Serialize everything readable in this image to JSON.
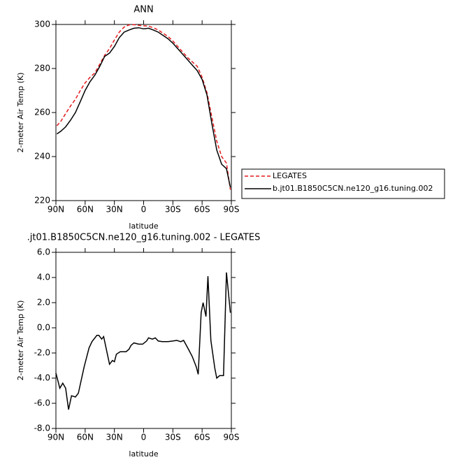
{
  "chart_data": [
    {
      "type": "line",
      "title": "ANN",
      "xlabel": "latitude",
      "ylabel": "2-meter Air Temp (K)",
      "x": [
        89,
        85,
        80,
        75,
        70,
        65,
        60,
        55,
        50,
        45,
        40,
        35,
        30,
        25,
        20,
        15,
        10,
        5,
        0,
        -5,
        -10,
        -15,
        -20,
        -25,
        -30,
        -35,
        -40,
        -45,
        -50,
        -55,
        -60,
        -65,
        -70,
        -75,
        -80,
        -85,
        -89
      ],
      "series": [
        {
          "name": "LEGATES",
          "color": "#e41a1c",
          "style": "dashed",
          "values": [
            254,
            256,
            259.5,
            263,
            266,
            270,
            273.5,
            276,
            278,
            282,
            286,
            289,
            293,
            296.5,
            298.8,
            299.8,
            299.9,
            299.6,
            299.4,
            299.2,
            298.5,
            297.5,
            296,
            294.5,
            292.5,
            290,
            287.5,
            285,
            283,
            281,
            276,
            269,
            258,
            247,
            240,
            237,
            225
          ]
        },
        {
          "name": "b.jt01.B1850C5CN.ne120_g16.tuning.002",
          "color": "#000000",
          "style": "solid",
          "values": [
            250.3,
            251.5,
            253.5,
            256.5,
            260,
            265,
            270,
            274,
            277,
            281,
            285.5,
            287,
            290,
            294,
            296.5,
            297.5,
            298.3,
            298.5,
            298,
            298.3,
            297.5,
            296.5,
            295,
            293.5,
            291.5,
            289,
            286.5,
            284,
            281.5,
            279,
            275,
            268,
            255,
            243,
            236.5,
            234.5,
            226
          ]
        }
      ],
      "xlim": [
        90,
        -90
      ],
      "ylim": [
        220,
        300
      ],
      "xticks": [
        {
          "value": 90,
          "label": "90N"
        },
        {
          "value": 60,
          "label": "60N"
        },
        {
          "value": 30,
          "label": "30N"
        },
        0,
        {
          "value": -30,
          "label": "30S"
        },
        {
          "value": -60,
          "label": "60S"
        },
        {
          "value": -90,
          "label": "90S"
        }
      ],
      "yticks": [
        220,
        240,
        260,
        280,
        300
      ],
      "legend": "right"
    },
    {
      "type": "line",
      "title": ".jt01.B1850C5CN.ne120_g16.tuning.002 - LEGATES",
      "xlabel": "latitude",
      "ylabel": "2-meter Air Temp (K)",
      "x": [
        90,
        86,
        83,
        80,
        77,
        74,
        70,
        67,
        61,
        56,
        53,
        48,
        46,
        43,
        41,
        35,
        32,
        30,
        28,
        24,
        18,
        15,
        13,
        10,
        5,
        1,
        -3,
        -5,
        -9,
        -12,
        -15,
        -19,
        -25,
        -30,
        -34,
        -38,
        -41,
        -46,
        -50,
        -54,
        -56,
        -59,
        -61,
        -64,
        -66,
        -69,
        -73,
        -75,
        -78,
        -82,
        -85,
        -89
      ],
      "series": [
        {
          "color": "#000000",
          "values": [
            -3.6,
            -4.8,
            -4.4,
            -4.8,
            -6.5,
            -5.4,
            -5.5,
            -5.2,
            -3.1,
            -1.6,
            -1.1,
            -0.6,
            -0.6,
            -0.9,
            -0.7,
            -2.9,
            -2.6,
            -2.7,
            -2.1,
            -1.9,
            -1.9,
            -1.7,
            -1.4,
            -1.2,
            -1.3,
            -1.3,
            -1.05,
            -0.8,
            -0.9,
            -0.8,
            -1.05,
            -1.1,
            -1.1,
            -1.05,
            -1,
            -1.1,
            -1,
            -1.7,
            -2.3,
            -3.1,
            -3.7,
            1.2,
            2,
            0.9,
            4.1,
            -1,
            -3.2,
            -4,
            -3.8,
            -3.8,
            4.4,
            1.2
          ]
        }
      ],
      "xlim": [
        90,
        -90
      ],
      "ylim": [
        -8,
        6
      ],
      "xticks": [
        {
          "value": 90,
          "label": "90N"
        },
        {
          "value": 60,
          "label": "60N"
        },
        {
          "value": 30,
          "label": "30N"
        },
        0,
        {
          "value": -30,
          "label": "30S"
        },
        {
          "value": -60,
          "label": "60S"
        },
        {
          "value": -90,
          "label": "90S"
        }
      ],
      "yticks": [
        {
          "value": -8,
          "label": "-8.0"
        },
        {
          "value": -6,
          "label": "-6.0"
        },
        {
          "value": -4,
          "label": "-4.0"
        },
        {
          "value": -2,
          "label": "-2.0"
        },
        {
          "value": 0,
          "label": "0.0"
        },
        {
          "value": 2,
          "label": "2.0"
        },
        {
          "value": 4,
          "label": "4.0"
        },
        {
          "value": 6,
          "label": "6.0"
        }
      ]
    }
  ]
}
